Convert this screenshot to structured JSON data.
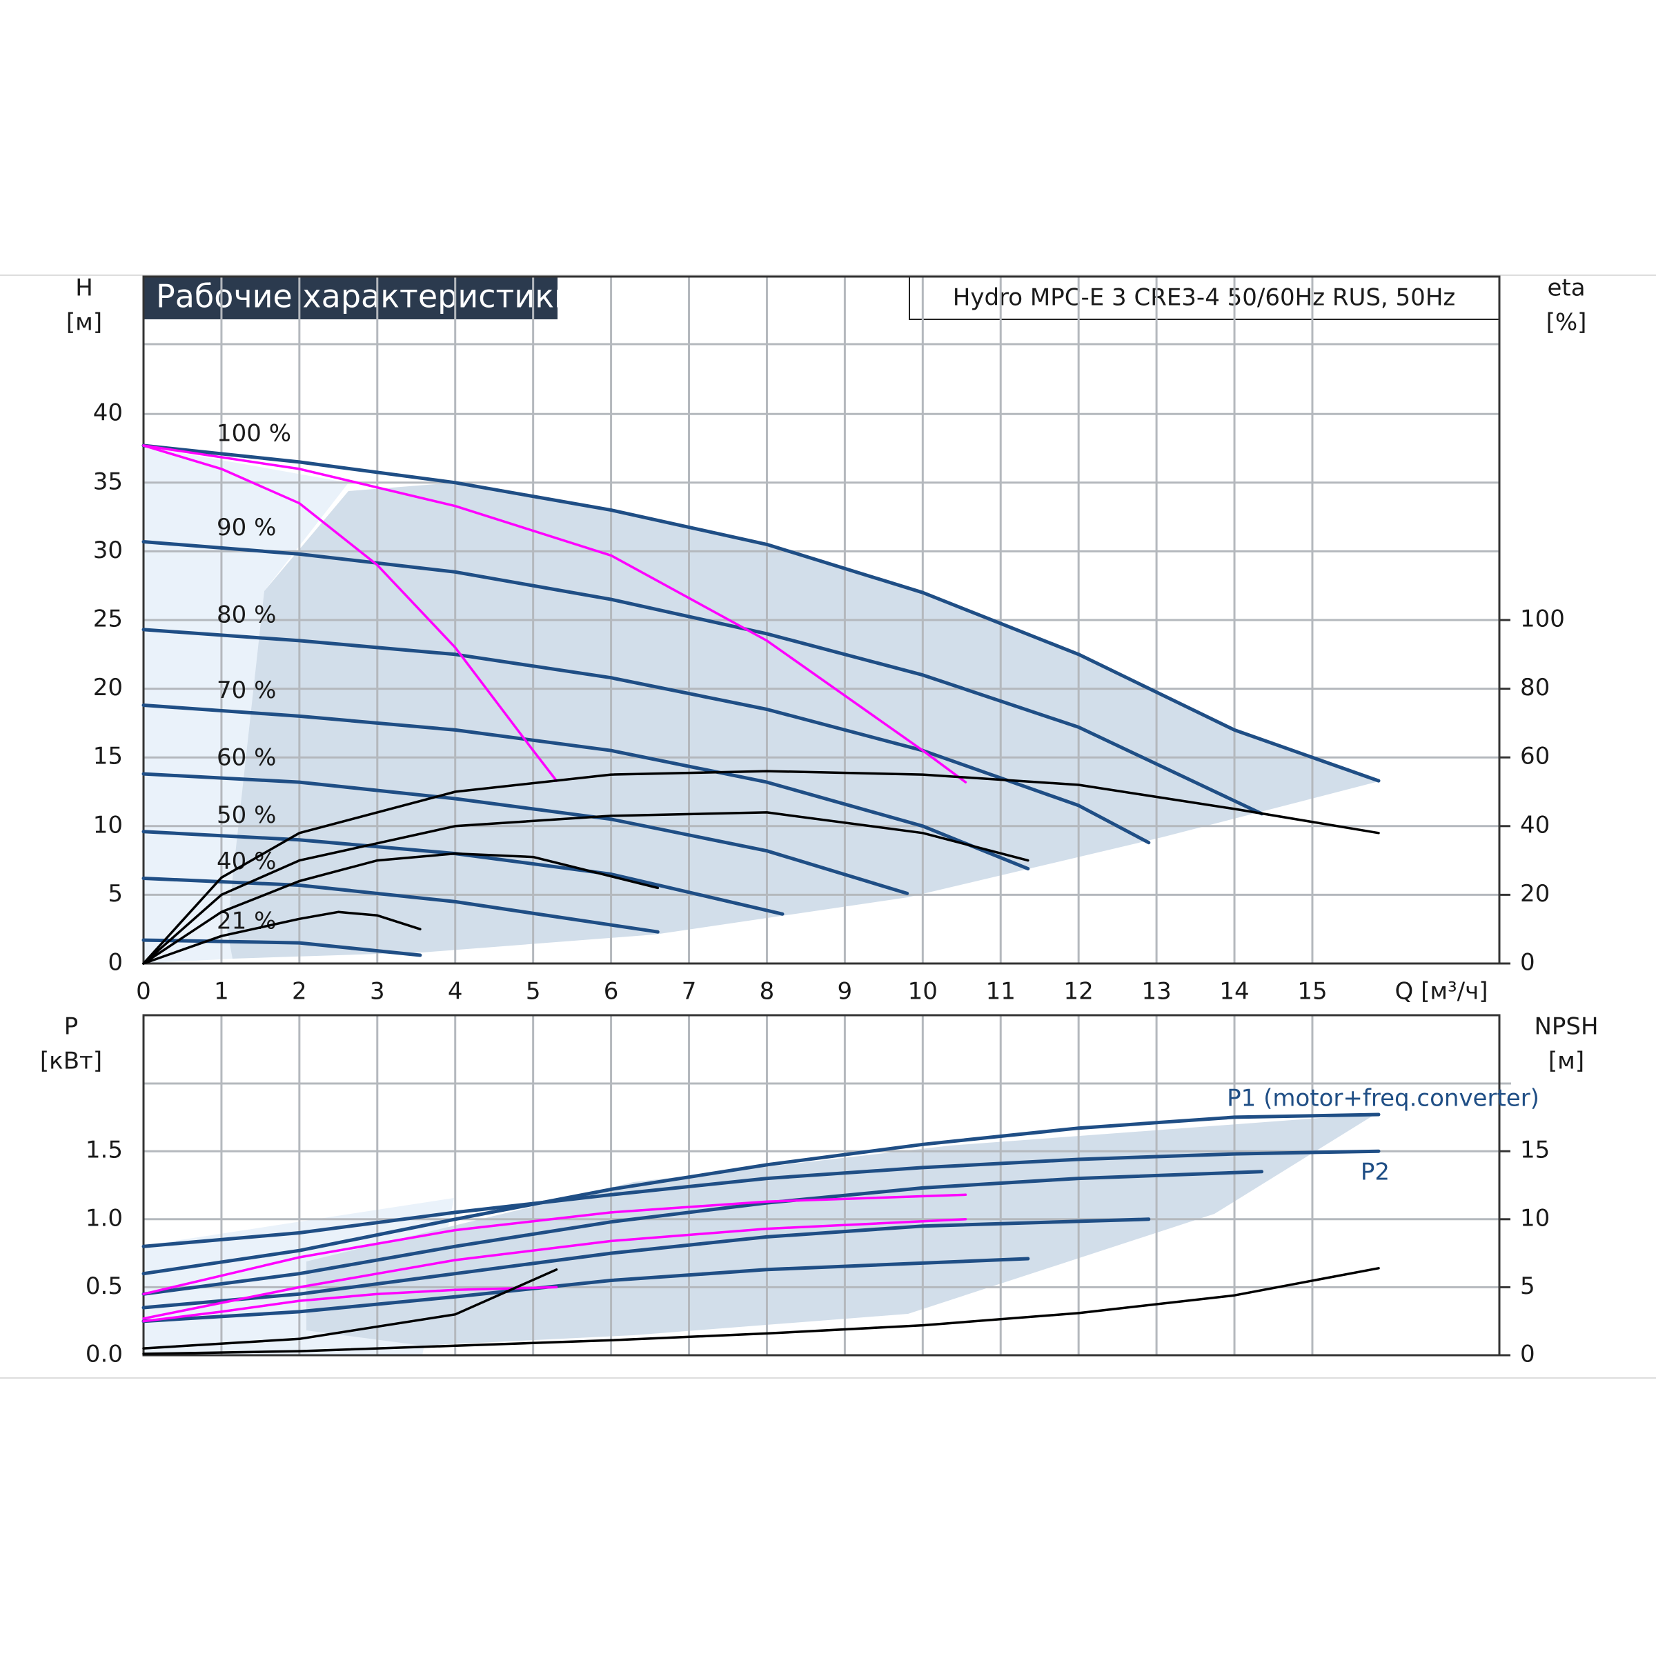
{
  "chart_data": [
    {
      "type": "line",
      "title": "Рабочие характеристики",
      "subtitle": "Hydro MPC-E 3 CRE3-4 50/60Hz RUS, 50Hz",
      "ylabel": [
        "H",
        "[м]"
      ],
      "y2label": [
        "eta",
        "[%]"
      ],
      "xlabel": "Q [м³/ч]",
      "xlim": [
        0,
        17.4
      ],
      "xticks": [
        0,
        1,
        2,
        3,
        4,
        5,
        6,
        7,
        8,
        9,
        10,
        11,
        12,
        13,
        14,
        15
      ],
      "ylim": [
        0,
        50
      ],
      "yticks": [
        0,
        5,
        10,
        15,
        20,
        25,
        30,
        35,
        40
      ],
      "y2lim": [
        0,
        200
      ],
      "y2ticks": [
        0,
        20,
        40,
        60,
        80,
        100
      ],
      "grid": true,
      "series": [
        {
          "name": "100 %",
          "color": "#1f4e85",
          "x": [
            0,
            2,
            4,
            6,
            8,
            10,
            12,
            14,
            15.85
          ],
          "values": [
            37.7,
            36.5,
            35,
            33,
            30.5,
            27,
            22.5,
            17,
            13.3
          ]
        },
        {
          "name": "90 %",
          "color": "#1f4e85",
          "x": [
            0,
            2,
            4,
            6,
            8,
            10,
            12,
            14.35
          ],
          "values": [
            30.7,
            29.8,
            28.5,
            26.5,
            24,
            21,
            17.2,
            10.9
          ]
        },
        {
          "name": "80 %",
          "color": "#1f4e85",
          "x": [
            0,
            2,
            4,
            6,
            8,
            10,
            12,
            12.9
          ],
          "values": [
            24.3,
            23.5,
            22.5,
            20.8,
            18.5,
            15.5,
            11.5,
            8.8
          ]
        },
        {
          "name": "70 %",
          "color": "#1f4e85",
          "x": [
            0,
            2,
            4,
            6,
            8,
            10,
            11.35
          ],
          "values": [
            18.8,
            18,
            17,
            15.5,
            13.2,
            10,
            6.9
          ]
        },
        {
          "name": "60 %",
          "color": "#1f4e85",
          "x": [
            0,
            2,
            4,
            6,
            8,
            9.8
          ],
          "values": [
            13.8,
            13.2,
            12,
            10.5,
            8.2,
            5.1
          ]
        },
        {
          "name": "50 %",
          "color": "#1f4e85",
          "x": [
            0,
            2,
            4,
            6,
            8.2
          ],
          "values": [
            9.6,
            9,
            8,
            6.5,
            3.6
          ]
        },
        {
          "name": "40 %",
          "color": "#1f4e85",
          "x": [
            0,
            2,
            4,
            6.6
          ],
          "values": [
            6.2,
            5.7,
            4.5,
            2.3
          ]
        },
        {
          "name": "21 %",
          "color": "#1f4e85",
          "x": [
            0,
            2,
            3.55
          ],
          "values": [
            1.7,
            1.5,
            0.6
          ]
        },
        {
          "color": "#ff00ff",
          "x": [
            0,
            1,
            2,
            3,
            4,
            5,
            5.3
          ],
          "values": [
            37.7,
            36,
            33.5,
            29,
            23,
            15.5,
            13.3
          ]
        },
        {
          "color": "#ff00ff",
          "x": [
            0,
            2,
            4,
            6,
            8,
            10,
            10.55
          ],
          "values": [
            37.7,
            36,
            33.3,
            29.7,
            23.5,
            15.5,
            13.2
          ]
        },
        {
          "color": "#000000",
          "axis": "y2",
          "x": [
            0,
            1,
            2,
            4,
            6,
            8,
            10,
            12,
            14,
            15.85
          ],
          "values": [
            0,
            25,
            38,
            50,
            55,
            56,
            55,
            52,
            45,
            38
          ]
        },
        {
          "color": "#000000",
          "axis": "y2",
          "x": [
            0,
            1,
            2,
            4,
            6,
            8,
            10,
            11.35
          ],
          "values": [
            0,
            20,
            30,
            40,
            43,
            44,
            38,
            30
          ]
        },
        {
          "color": "#000000",
          "axis": "y2",
          "x": [
            0,
            1,
            2,
            3,
            4,
            5,
            6.6
          ],
          "values": [
            0,
            15,
            24,
            30,
            32,
            31,
            22
          ]
        },
        {
          "color": "#000000",
          "axis": "y2",
          "x": [
            0,
            1,
            2,
            2.5,
            3,
            3.55
          ],
          "values": [
            0,
            8,
            13,
            15,
            14,
            10
          ]
        }
      ]
    },
    {
      "type": "line",
      "ylabel": [
        "P",
        "[кВт]"
      ],
      "y2label": [
        "NPSH",
        "[м]"
      ],
      "xlim": [
        0,
        17.4
      ],
      "ylim": [
        0,
        2.5
      ],
      "yticks": [
        {
          "value": 0,
          "label": "0.0"
        },
        0.5,
        {
          "value": 1,
          "label": "1.0"
        },
        1.5
      ],
      "y2lim": [
        0,
        25
      ],
      "y2ticks": [
        0,
        5,
        10,
        15
      ],
      "grid": true,
      "series": [
        {
          "name": "P1 (motor+freq.converter)",
          "color": "#1f4e85",
          "x": [
            0,
            2,
            4,
            6,
            8,
            10,
            12,
            14,
            15.85
          ],
          "values": [
            0.6,
            0.77,
            1.0,
            1.22,
            1.4,
            1.55,
            1.67,
            1.75,
            1.77
          ]
        },
        {
          "name": "P2",
          "color": "#1f4e85",
          "x": [
            0,
            2,
            4,
            6,
            8,
            10,
            12,
            14,
            15.85
          ],
          "values": [
            0.8,
            0.9,
            1.05,
            1.18,
            1.3,
            1.38,
            1.44,
            1.48,
            1.5
          ]
        },
        {
          "color": "#1f4e85",
          "x": [
            0,
            2,
            4,
            6,
            8,
            10,
            12,
            14.35
          ],
          "values": [
            0.45,
            0.6,
            0.8,
            0.98,
            1.12,
            1.23,
            1.3,
            1.35
          ]
        },
        {
          "color": "#1f4e85",
          "x": [
            0,
            2,
            4,
            6,
            8,
            10,
            12.9
          ],
          "values": [
            0.35,
            0.45,
            0.6,
            0.75,
            0.87,
            0.95,
            1.0
          ]
        },
        {
          "color": "#1f4e85",
          "x": [
            0,
            2,
            4,
            6,
            8,
            11.35
          ],
          "values": [
            0.25,
            0.32,
            0.43,
            0.55,
            0.63,
            0.71
          ]
        },
        {
          "color": "#ff00ff",
          "x": [
            0,
            2,
            4,
            6,
            8,
            10.55
          ],
          "values": [
            0.45,
            0.72,
            0.92,
            1.05,
            1.13,
            1.18
          ]
        },
        {
          "color": "#ff00ff",
          "x": [
            0,
            2,
            4,
            6,
            8,
            10.55
          ],
          "values": [
            0.27,
            0.5,
            0.7,
            0.84,
            0.93,
            1.0
          ]
        },
        {
          "color": "#ff00ff",
          "x": [
            0,
            1,
            2,
            3,
            4,
            5.3
          ],
          "values": [
            0.25,
            0.32,
            0.4,
            0.45,
            0.48,
            0.5
          ]
        },
        {
          "color": "#000000",
          "axis": "y2",
          "x": [
            0,
            2,
            4,
            6,
            8,
            10,
            12,
            14,
            15.85
          ],
          "values": [
            0.1,
            0.3,
            0.7,
            1.1,
            1.6,
            2.2,
            3.1,
            4.4,
            6.4
          ]
        },
        {
          "color": "#000000",
          "axis": "y2",
          "x": [
            0,
            2,
            4,
            5.3
          ],
          "values": [
            0.5,
            1.2,
            3.0,
            6.3
          ]
        }
      ]
    }
  ]
}
